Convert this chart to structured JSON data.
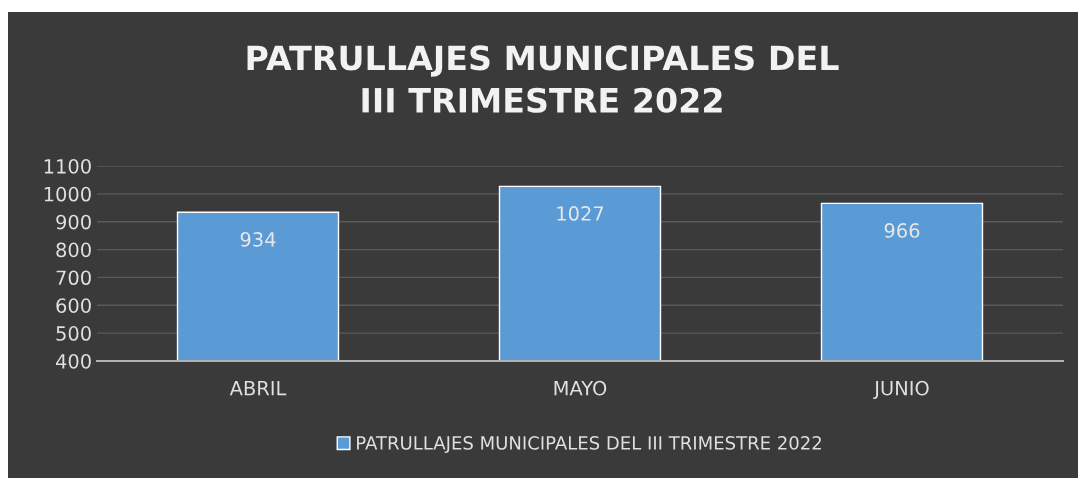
{
  "chart_data": {
    "type": "bar",
    "title": "PATRULLAJES MUNICIPALES DEL\nIII TRIMESTRE 2022",
    "categories": [
      "ABRIL",
      "MAYO",
      "JUNIO"
    ],
    "series": [
      {
        "name": "PATRULLAJES MUNICIPALES DEL III TRIMESTRE 2022",
        "color": "#5b9bd5",
        "values": [
          934,
          1027,
          966
        ]
      }
    ],
    "ylim": [
      400,
      1100
    ],
    "yticks": [
      400,
      500,
      600,
      700,
      800,
      900,
      1000,
      1100
    ],
    "grid": "y",
    "legend": "bottom",
    "data_labels": true
  }
}
